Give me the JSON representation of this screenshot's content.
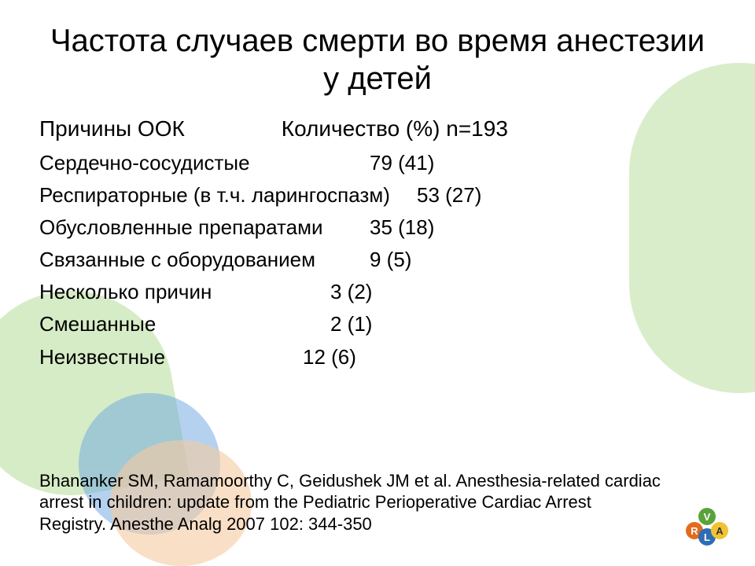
{
  "slide": {
    "title": "Частота случаев смерти во время анестезии у детей",
    "header": {
      "col1": "Причины ООК",
      "col2": "Количество (%) n=193"
    },
    "rows": [
      {
        "label": "Сердечно-сосудистые",
        "value": "79 (41)",
        "width_class": "w1"
      },
      {
        "label": "Респираторные (в т.ч. ларингоспазм)",
        "value": "53 (27)",
        "width_class": "w2"
      },
      {
        "label": "Обусловленные препаратами",
        "value": "35 (18)",
        "width_class": "w3"
      },
      {
        "label": "Связанные с оборудованием",
        "value": "9 (5)",
        "width_class": "w4"
      },
      {
        "label": "Несколько причин",
        "value": "3 (2)",
        "width_class": "w5"
      },
      {
        "label": "Смешанные",
        "value": "2 (1)",
        "width_class": "w6"
      },
      {
        "label": "Неизвестные",
        "value": "12 (6)",
        "width_class": "w7"
      }
    ],
    "citation": "Bhananker SM, Ramamoorthy C, Geidushek JM et al. Anesthesia-related cardiac arrest in children: update from the Pediatric Perioperative Cardiac Arrest Registry. Anesthe Analg 2007 102: 344-350",
    "styling": {
      "background_color": "#ffffff",
      "text_color": "#000000",
      "title_fontsize_pt": 40,
      "header_fontsize_pt": 28,
      "row_fontsize_pt": 26,
      "citation_fontsize_pt": 22,
      "font_family": "Arial",
      "decor_colors": {
        "green": "#cfe8bd",
        "blue": "#6aa6e0",
        "peach": "#f5c9a0"
      },
      "logo_colors": {
        "orange": "#e36b1f",
        "green": "#5aa23a",
        "yellow": "#f1c232",
        "blue": "#2f6db3"
      }
    },
    "logo_letters": {
      "c1": "R",
      "c2": "V",
      "c3": "A",
      "c4": "L"
    }
  }
}
